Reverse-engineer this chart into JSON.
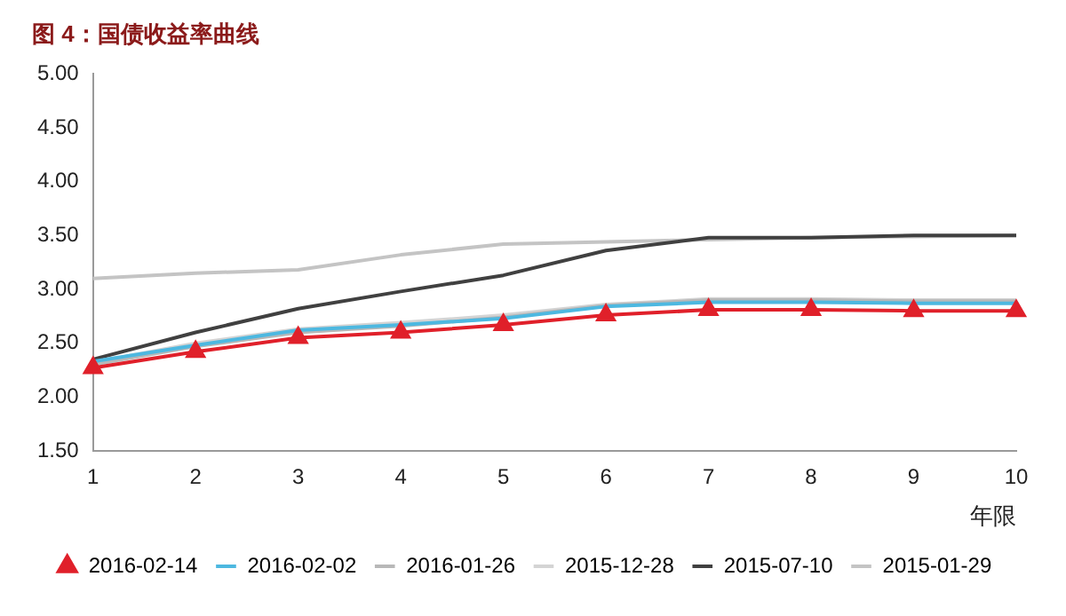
{
  "chart_data": {
    "type": "line",
    "title": "图 4：国债收益率曲线",
    "xlabel": "年限",
    "categories": [
      "1",
      "2",
      "3",
      "4",
      "5",
      "6",
      "7",
      "8",
      "9",
      "10"
    ],
    "series": [
      {
        "name": "2016-02-14",
        "color": "#e0202a",
        "marker": "triangle",
        "values": [
          2.27,
          2.42,
          2.55,
          2.6,
          2.67,
          2.76,
          2.81,
          2.81,
          2.8,
          2.8
        ]
      },
      {
        "name": "2016-02-02",
        "color": "#4db8e0",
        "values": [
          2.33,
          2.48,
          2.62,
          2.67,
          2.73,
          2.84,
          2.88,
          2.88,
          2.87,
          2.87
        ]
      },
      {
        "name": "2016-01-26",
        "color": "#b8b8b8",
        "values": [
          2.3,
          2.47,
          2.6,
          2.66,
          2.74,
          2.85,
          2.9,
          2.9,
          2.89,
          2.89
        ]
      },
      {
        "name": "2015-12-28",
        "color": "#d4d4d4",
        "values": [
          2.32,
          2.5,
          2.63,
          2.69,
          2.76,
          2.86,
          2.91,
          2.91,
          2.9,
          2.9
        ]
      },
      {
        "name": "2015-07-10",
        "color": "#404040",
        "values": [
          2.35,
          2.6,
          2.82,
          2.98,
          3.13,
          3.36,
          3.48,
          3.48,
          3.5,
          3.5
        ]
      },
      {
        "name": "2015-01-29",
        "color": "#c4c4c4",
        "values": [
          3.1,
          3.15,
          3.18,
          3.32,
          3.42,
          3.44,
          3.46,
          3.48,
          3.49,
          3.5
        ]
      }
    ],
    "ylim": [
      1.5,
      5
    ],
    "yticks": [
      {
        "value": 1.5,
        "label": "1.50"
      },
      {
        "value": 2,
        "label": "2.00"
      },
      {
        "value": 2.5,
        "label": "2.50"
      },
      {
        "value": 3,
        "label": "3.00"
      },
      {
        "value": 3.5,
        "label": "3.50"
      },
      {
        "value": 4,
        "label": "4.00"
      },
      {
        "value": 4.5,
        "label": "4.50"
      },
      {
        "value": 5,
        "label": "5.00"
      }
    ],
    "grid": false,
    "legend": "bottom",
    "line_style": "solid"
  }
}
